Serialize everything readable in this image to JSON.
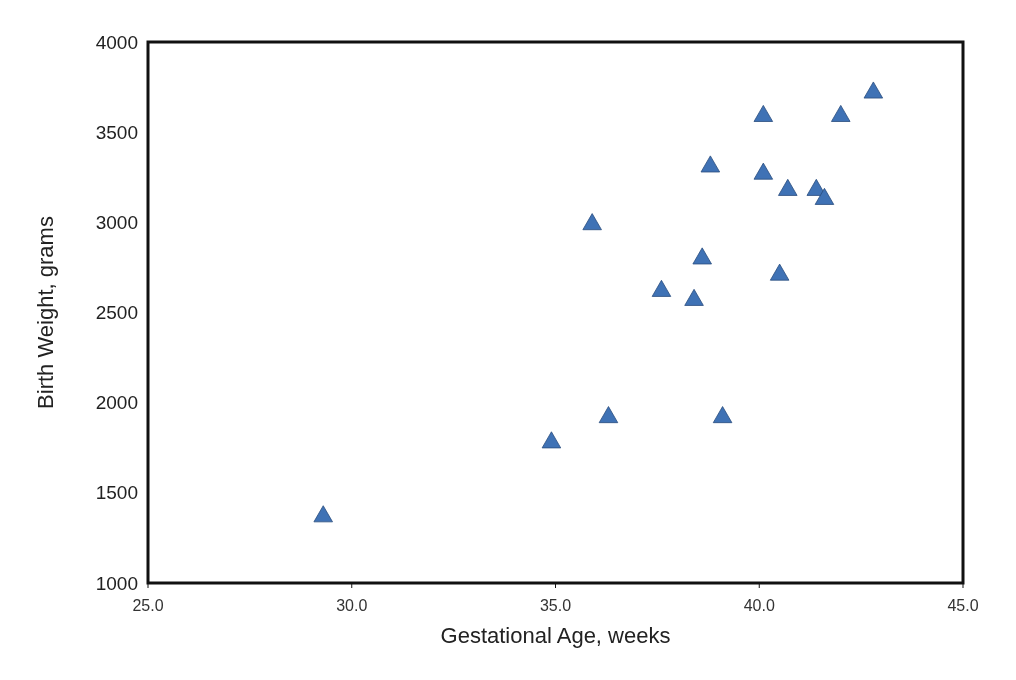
{
  "chart_data": {
    "type": "scatter",
    "xlabel": "Gestational Age, weeks",
    "ylabel": "Birth Weight, grams",
    "xlim": [
      25,
      45
    ],
    "xticks": [
      {
        "value": 25,
        "label": "25.0"
      },
      {
        "value": 30,
        "label": "30.0"
      },
      {
        "value": 35,
        "label": "35.0"
      },
      {
        "value": 40,
        "label": "40.0"
      },
      {
        "value": 45,
        "label": "45.0"
      }
    ],
    "ylim": [
      1000,
      4000
    ],
    "yticks": [
      1000,
      1500,
      2000,
      2500,
      3000,
      3500,
      4000
    ],
    "grid": false,
    "marker": "triangle",
    "series": [
      {
        "color": "#3f72b5",
        "x": [
          42.8,
          40.1,
          42.0,
          38.8,
          40.1,
          40.7,
          41.4,
          41.6,
          35.9,
          38.6,
          40.5,
          37.6,
          38.4,
          29.3,
          34.9,
          36.3,
          39.1
        ],
        "values": [
          3730,
          3600,
          3600,
          3320,
          3280,
          3190,
          3190,
          3140,
          3000,
          2810,
          2720,
          2630,
          2580,
          1380,
          1790,
          1930,
          1930
        ]
      }
    ]
  }
}
